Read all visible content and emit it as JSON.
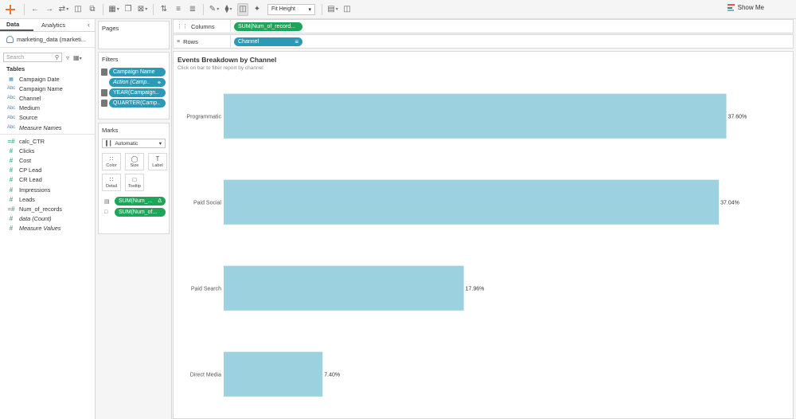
{
  "toolbar": {
    "fit_label": "Fit Height",
    "show_me_label": "Show Me",
    "show_me_colors": [
      "#e15759",
      "#4e79a7",
      "#76b7b2"
    ]
  },
  "data_pane": {
    "tabs": [
      {
        "label": "Data",
        "active": true
      },
      {
        "label": "Analytics",
        "active": false
      }
    ],
    "datasource": "marketing_data (marketi...",
    "search_placeholder": "Search",
    "tables_label": "Tables",
    "dimensions": [
      {
        "label": "Campaign Date",
        "icon": "calendar-icon",
        "italic": false
      },
      {
        "label": "Campaign Name",
        "icon": "abc-icon",
        "italic": false
      },
      {
        "label": "Channel",
        "icon": "abc-icon",
        "italic": false
      },
      {
        "label": "Medium",
        "icon": "abc-icon",
        "italic": false
      },
      {
        "label": "Source",
        "icon": "abc-icon",
        "italic": false
      },
      {
        "label": "Measure Names",
        "icon": "abc-icon",
        "italic": true
      }
    ],
    "measures": [
      {
        "label": "calc_CTR",
        "icon": "calc-measure-icon",
        "italic": false
      },
      {
        "label": "Clicks",
        "icon": "measure-icon",
        "italic": false
      },
      {
        "label": "Cost",
        "icon": "measure-icon",
        "italic": false
      },
      {
        "label": "CP Lead",
        "icon": "measure-icon",
        "italic": false
      },
      {
        "label": "CR Lead",
        "icon": "measure-icon",
        "italic": false
      },
      {
        "label": "Impressions",
        "icon": "measure-icon",
        "italic": false
      },
      {
        "label": "Leads",
        "icon": "measure-icon",
        "italic": false
      },
      {
        "label": "Num_of_records",
        "icon": "calc-measure-icon",
        "italic": false
      },
      {
        "label": "data (Count)",
        "icon": "measure-icon",
        "italic": true
      },
      {
        "label": "Measure Values",
        "icon": "measure-icon",
        "italic": true
      }
    ]
  },
  "pages_card": {
    "title": "Pages"
  },
  "filters_card": {
    "title": "Filters",
    "items": [
      {
        "label": "Campaign Name",
        "italic": false,
        "has_icon": true
      },
      {
        "label": "Action (Camp..",
        "italic": true,
        "has_icon": false
      },
      {
        "label": "YEAR(Campaign..",
        "italic": false,
        "has_icon": true
      },
      {
        "label": "QUARTER(Camp..",
        "italic": false,
        "has_icon": true
      }
    ]
  },
  "marks_card": {
    "title": "Marks",
    "mark_type": "Automatic",
    "buttons": [
      {
        "label": "Color",
        "icon": "color-dots-icon"
      },
      {
        "label": "Size",
        "icon": "size-icon"
      },
      {
        "label": "Label",
        "icon": "label-icon"
      },
      {
        "label": "Detail",
        "icon": "detail-icon"
      },
      {
        "label": "Tooltip",
        "icon": "tooltip-icon"
      }
    ],
    "pills": [
      {
        "label": "SUM(Num_...",
        "icon": "label-icon",
        "delta": true
      },
      {
        "label": "SUM(Num_of...",
        "icon": "tooltip-icon",
        "delta": false
      }
    ]
  },
  "columns_shelf": {
    "label": "Columns",
    "pill": "SUM(Num_of_record..."
  },
  "rows_shelf": {
    "label": "Rows",
    "pill": "Channel"
  },
  "view": {
    "title": "Events Breakdown by Channel",
    "subtitle": "Click on bar to filter report by channel"
  },
  "chart_data": {
    "type": "bar",
    "orientation": "horizontal",
    "categories": [
      "Programmatic",
      "Paid Social",
      "Paid Search",
      "Direct Media"
    ],
    "values": [
      37.6,
      37.04,
      17.96,
      7.4
    ],
    "labels": [
      "37.60%",
      "37.04%",
      "17.96%",
      "7.40%"
    ],
    "bar_color": "#9cd2df",
    "xlim": [
      0,
      38.7
    ]
  }
}
